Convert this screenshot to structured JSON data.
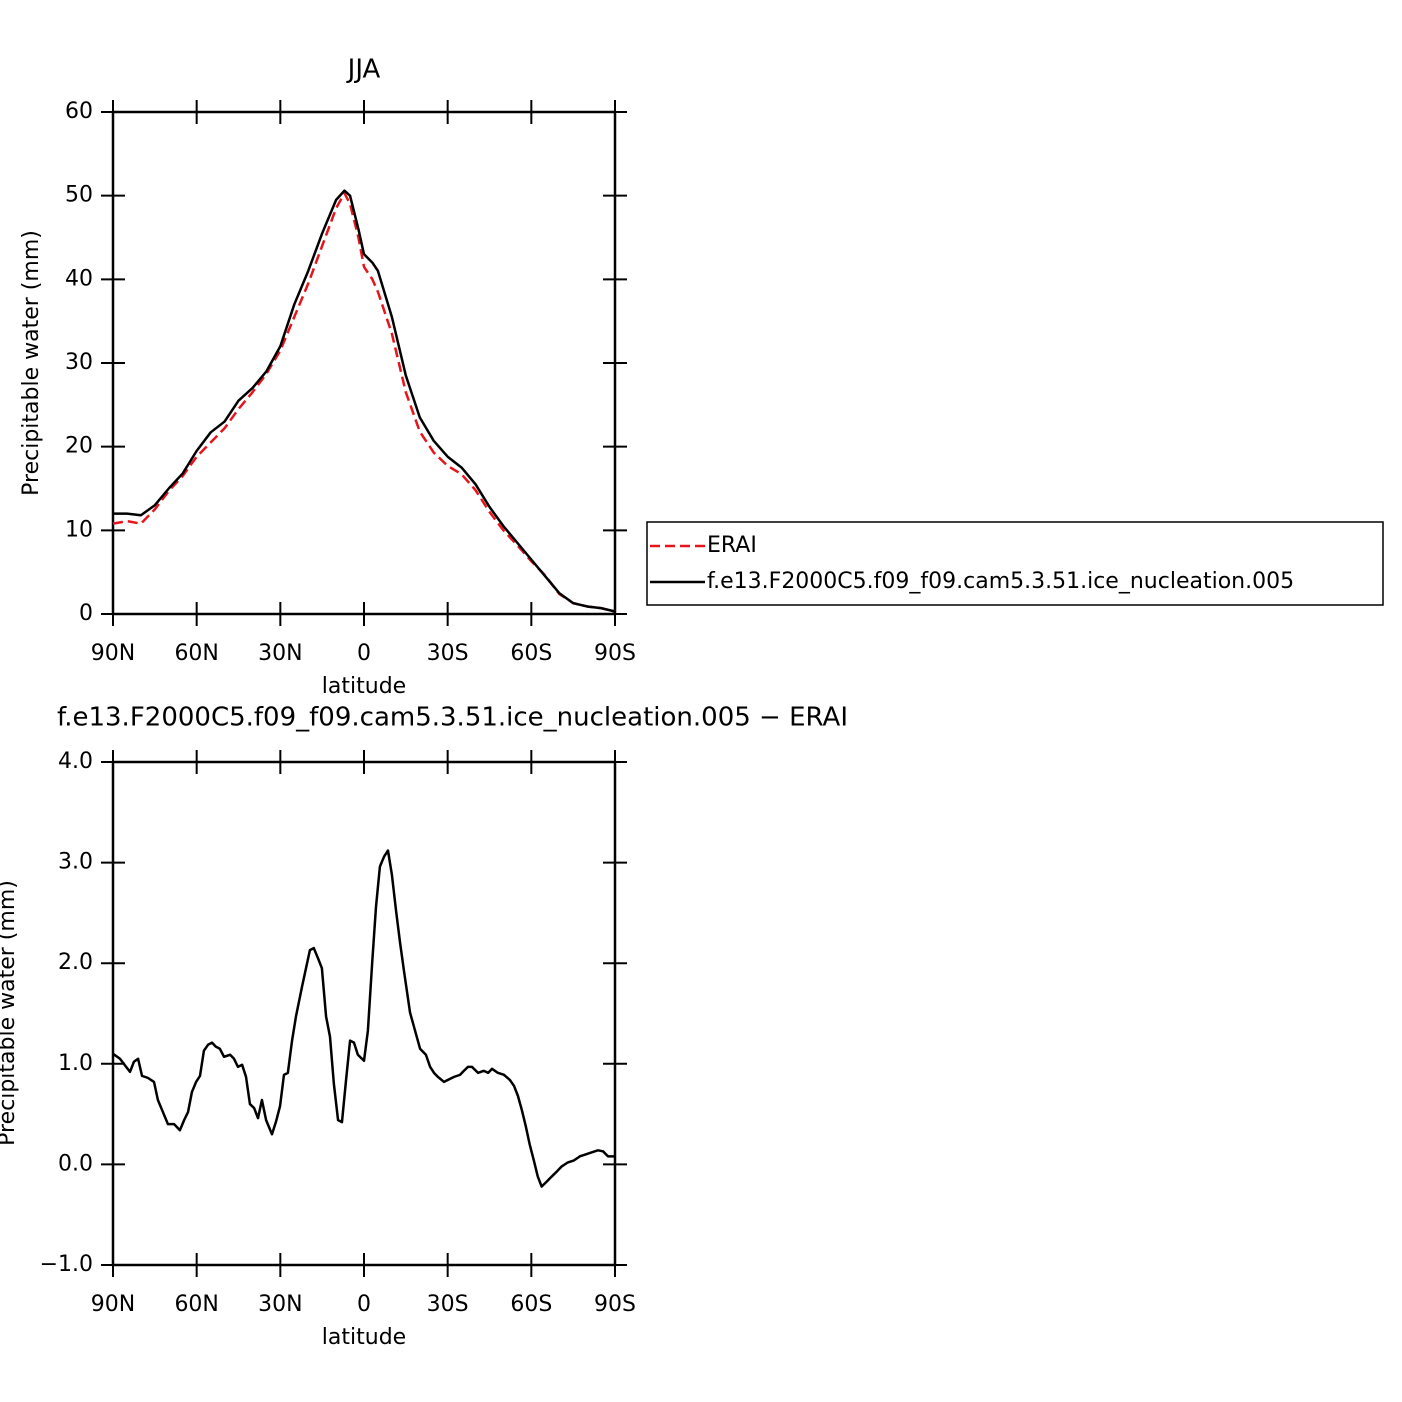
{
  "chart_data": [
    {
      "type": "line",
      "title": "JJA",
      "xlabel": "latitude",
      "ylabel": "Precipitable water (mm)",
      "xlim": [
        90,
        -90
      ],
      "xticks": [
        {
          "value": 90,
          "label": "90N"
        },
        {
          "value": 60,
          "label": "60N"
        },
        {
          "value": 30,
          "label": "30N"
        },
        0,
        {
          "value": -30,
          "label": "30S"
        },
        {
          "value": -60,
          "label": "60S"
        },
        {
          "value": -90,
          "label": "90S"
        }
      ],
      "ylim": [
        0,
        60
      ],
      "yticks": [
        0,
        10,
        20,
        30,
        40,
        50,
        60
      ],
      "legend": "right",
      "x": [
        90,
        85,
        80,
        75,
        70,
        65,
        60,
        55,
        50,
        45,
        40,
        35,
        30,
        25,
        20,
        15,
        10,
        7,
        5,
        2,
        0,
        -3,
        -5,
        -10,
        -15,
        -20,
        -25,
        -30,
        -35,
        -40,
        -45,
        -50,
        -55,
        -60,
        -65,
        -70,
        -75,
        -80,
        -85,
        -90
      ],
      "series": [
        {
          "name": "ERAI",
          "color": "#e8141c",
          "dashed": true,
          "values": [
            10.8,
            11.1,
            10.8,
            12.5,
            14.7,
            16.5,
            18.8,
            20.5,
            22.2,
            24.5,
            26.5,
            28.7,
            31.5,
            35.5,
            39.5,
            44,
            48.5,
            50.3,
            49,
            45,
            41.5,
            40,
            38.5,
            33.5,
            26.5,
            21.8,
            19.3,
            17.7,
            16.7,
            14.8,
            12.2,
            10,
            8.2,
            6.3,
            4.6,
            2.4,
            1.3,
            0.9,
            0.7,
            0.3
          ]
        },
        {
          "name": "f.e13.F2000C5.f09_f09.cam5.3.51.ice_nucleation.005",
          "color": "#000000",
          "dashed": false,
          "values": [
            12,
            12,
            11.8,
            13,
            15,
            16.8,
            19.5,
            21.7,
            23,
            25.5,
            27,
            29,
            32,
            37,
            41,
            45.5,
            49.5,
            50.6,
            50,
            46,
            43,
            42,
            41,
            35.5,
            28.5,
            23.5,
            20.7,
            18.8,
            17.5,
            15.5,
            12.8,
            10.5,
            8.5,
            6.5,
            4.5,
            2.5,
            1.3,
            0.9,
            0.7,
            0.3
          ]
        }
      ]
    },
    {
      "type": "line",
      "title": "f.e13.F2000C5.f09_f09.cam5.3.51.ice_nucleation.005 − ERAI",
      "xlabel": "latitude",
      "ylabel": "Precipitable water (mm)",
      "xlim": [
        90,
        -90
      ],
      "xticks": [
        {
          "value": 90,
          "label": "90N"
        },
        {
          "value": 60,
          "label": "60N"
        },
        {
          "value": 30,
          "label": "30N"
        },
        0,
        {
          "value": -30,
          "label": "30S"
        },
        {
          "value": -60,
          "label": "60S"
        },
        {
          "value": -90,
          "label": "90S"
        }
      ],
      "ylim": [
        -1,
        4
      ],
      "yticks": [
        {
          "value": -1,
          "label": "−1.0"
        },
        {
          "value": 0,
          "label": "0.0"
        },
        {
          "value": 1,
          "label": "1.0"
        },
        {
          "value": 2,
          "label": "2.0"
        },
        {
          "value": 3,
          "label": "3.0"
        },
        {
          "value": 4,
          "label": "4.0"
        }
      ],
      "x": [
        90,
        87.5,
        85.3,
        83.9,
        82.5,
        81,
        79.6,
        77.5,
        75.3,
        73.9,
        72.4,
        70.3,
        68.1,
        66,
        64.5,
        63.1,
        61.7,
        60.2,
        58.8,
        57.4,
        55.9,
        54.5,
        53.1,
        51.7,
        50.2,
        48,
        46.6,
        45.2,
        43.7,
        42.3,
        40.9,
        39.4,
        38,
        36.6,
        35.1,
        33,
        31.6,
        30.1,
        28.7,
        27.3,
        25.8,
        24.4,
        22.2,
        19.4,
        18,
        16.5,
        15.1,
        13.6,
        12.2,
        10.8,
        9.3,
        7.9,
        6.5,
        5,
        3.6,
        2.2,
        0,
        -1.4,
        -2.9,
        -4.3,
        -5.7,
        -7.2,
        -8.6,
        -10,
        -11.5,
        -12.9,
        -14.3,
        -16.5,
        -17.9,
        -20.1,
        -22.2,
        -23.7,
        -25.1,
        -26.5,
        -28.7,
        -30.1,
        -32.3,
        -34.4,
        -35.8,
        -37.3,
        -38.7,
        -40.9,
        -43,
        -44.5,
        -45.9,
        -48,
        -50.2,
        -52.3,
        -53.8,
        -55.2,
        -56.6,
        -58,
        -59.4,
        -60.9,
        -62.3,
        -63.7,
        -65.2,
        -66.6,
        -68.8,
        -70.9,
        -73.1,
        -75.3,
        -77.4,
        -79.6,
        -81.7,
        -83.9,
        -85.7,
        -87.5,
        -90
      ],
      "series": [
        {
          "color": "#000000",
          "dashed": false,
          "values": [
            1.1,
            1.05,
            0.97,
            0.92,
            1.02,
            1.05,
            0.88,
            0.86,
            0.82,
            0.64,
            0.54,
            0.4,
            0.4,
            0.34,
            0.44,
            0.52,
            0.72,
            0.82,
            0.88,
            1.13,
            1.19,
            1.21,
            1.17,
            1.15,
            1.07,
            1.09,
            1.05,
            0.97,
            0.99,
            0.87,
            0.6,
            0.56,
            0.46,
            0.64,
            0.44,
            0.3,
            0.42,
            0.58,
            0.89,
            0.91,
            1.23,
            1.47,
            1.77,
            2.13,
            2.15,
            2.05,
            1.95,
            1.47,
            1.27,
            0.8,
            0.44,
            0.42,
            0.82,
            1.23,
            1.21,
            1.09,
            1.03,
            1.33,
            1.99,
            2.56,
            2.96,
            3.06,
            3.12,
            2.88,
            2.52,
            2.21,
            1.93,
            1.51,
            1.37,
            1.15,
            1.09,
            0.97,
            0.91,
            0.87,
            0.82,
            0.84,
            0.87,
            0.89,
            0.93,
            0.97,
            0.97,
            0.91,
            0.93,
            0.91,
            0.95,
            0.91,
            0.89,
            0.84,
            0.78,
            0.68,
            0.54,
            0.38,
            0.2,
            0.04,
            -0.12,
            -0.22,
            -0.18,
            -0.14,
            -0.08,
            -0.02,
            0.02,
            0.04,
            0.08,
            0.1,
            0.12,
            0.14,
            0.13,
            0.08,
            0.08
          ]
        }
      ]
    }
  ]
}
